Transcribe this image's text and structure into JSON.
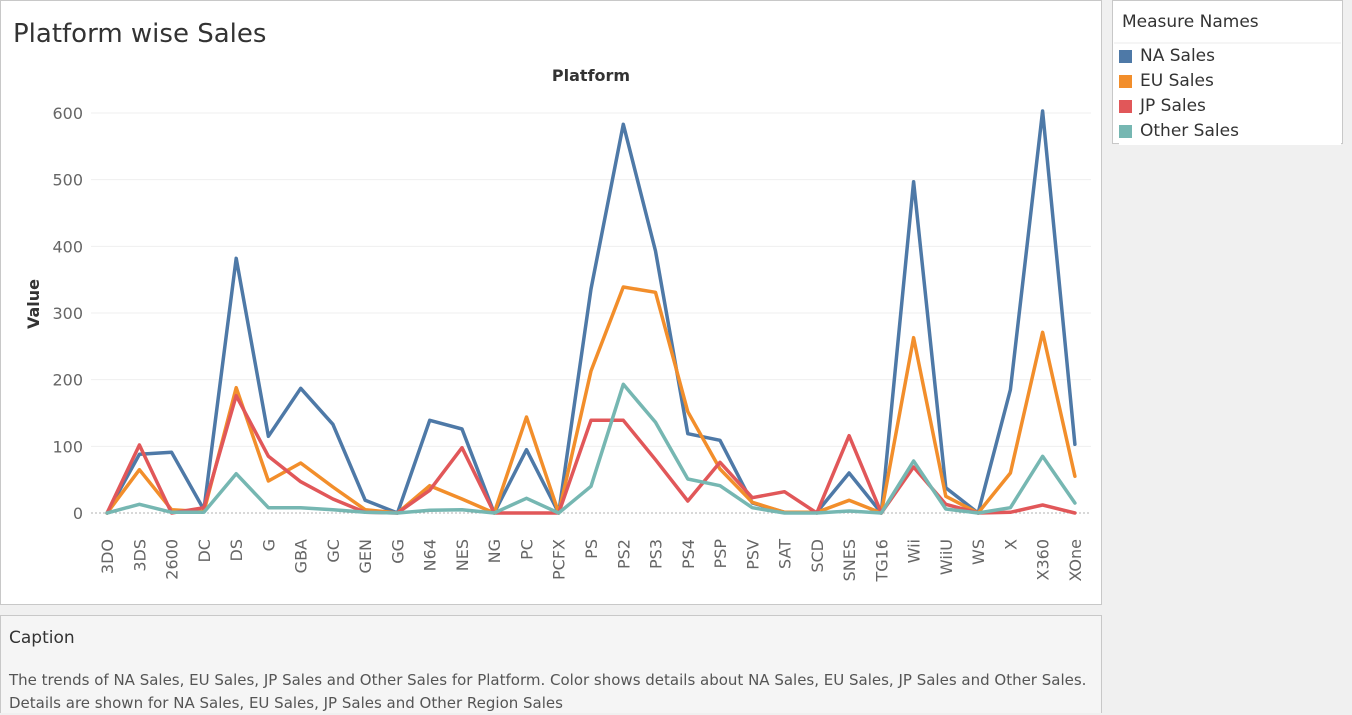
{
  "sheet_title": "Platform wise Sales",
  "legend": {
    "title": "Measure Names",
    "items": [
      {
        "label": "NA Sales",
        "color": "#4e79a7"
      },
      {
        "label": "EU Sales",
        "color": "#f28e2b"
      },
      {
        "label": "JP Sales",
        "color": "#e15759"
      },
      {
        "label": "Other Sales",
        "color": "#76b7b2"
      }
    ]
  },
  "caption": {
    "title": "Caption",
    "text": "The trends of NA Sales, EU Sales, JP Sales and Other Sales for Platform.  Color shows details about NA Sales, EU Sales, JP Sales and Other Sales.  Details are shown for NA Sales, EU Sales, JP Sales and Other Region Sales"
  },
  "chart_data": {
    "type": "line",
    "title": "Platform wise Sales",
    "xlabel": "Platform",
    "ylabel": "Value",
    "ylim": [
      0,
      630
    ],
    "yticks": [
      0,
      100,
      200,
      300,
      400,
      500,
      600
    ],
    "grid": true,
    "legend_placement": "right",
    "categories": [
      "3DO",
      "3DS",
      "2600",
      "DC",
      "DS",
      "G",
      "GBA",
      "GC",
      "GEN",
      "GG",
      "N64",
      "NES",
      "NG",
      "PC",
      "PCFX",
      "PS",
      "PS2",
      "PS3",
      "PS4",
      "PSP",
      "PSV",
      "SAT",
      "SCD",
      "SNES",
      "TG16",
      "Wii",
      "WiiU",
      "WS",
      "X",
      "X360",
      "XOne"
    ],
    "series": [
      {
        "name": "NA Sales",
        "color": "#4e79a7",
        "values": [
          0,
          88,
          91,
          5,
          382,
          115,
          187,
          133,
          19,
          0,
          139,
          126,
          0,
          95,
          0,
          336,
          583,
          393,
          119,
          109,
          15,
          1,
          1,
          60,
          0,
          497,
          38,
          0,
          185,
          603,
          103
        ]
      },
      {
        "name": "EU Sales",
        "color": "#f28e2b",
        "values": [
          0,
          65,
          5,
          2,
          188,
          48,
          75,
          39,
          5,
          0,
          41,
          21,
          0,
          144,
          0,
          213,
          339,
          331,
          152,
          66,
          16,
          1,
          1,
          19,
          0,
          263,
          25,
          0,
          60,
          271,
          55
        ]
      },
      {
        "name": "JP Sales",
        "color": "#e15759",
        "values": [
          0,
          102,
          0,
          8,
          176,
          85,
          47,
          21,
          1,
          0,
          34,
          98,
          0,
          0,
          0,
          139,
          139,
          80,
          18,
          76,
          23,
          32,
          0,
          116,
          0,
          69,
          13,
          0,
          1,
          12,
          0
        ]
      },
      {
        "name": "Other Sales",
        "color": "#76b7b2",
        "values": [
          0,
          13,
          1,
          1,
          59,
          8,
          8,
          5,
          1,
          0,
          4,
          5,
          0,
          22,
          0,
          40,
          193,
          136,
          51,
          41,
          8,
          0,
          0,
          3,
          0,
          78,
          6,
          0,
          8,
          85,
          15
        ]
      }
    ]
  }
}
